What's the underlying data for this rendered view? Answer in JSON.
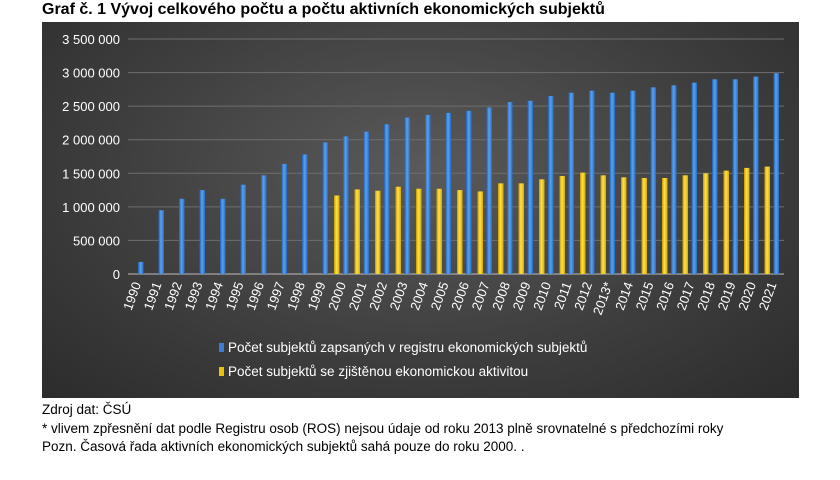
{
  "title": "Graf č.  1 Vývoj celkového počtu a počtu aktivních ekonomických subjektů",
  "footnotes": {
    "source": "Zdroj dat: ČSÚ",
    "note_star": "* vlivem zpřesnění dat podle Registru osob (ROS) nejsou údaje od roku 2013 plně srovnatelné s předchozími roky",
    "note_pozn": "Pozn. Časová řada aktivních ekonomických subjektů sahá pouze do roku 2000. ."
  },
  "colors": {
    "registered": "#3a7fd4",
    "active": "#e8c20c"
  },
  "chart_data": {
    "type": "bar",
    "title": "",
    "xlabel": "",
    "ylabel": "",
    "ylim": [
      0,
      3500000
    ],
    "yticks": [
      0,
      500000,
      1000000,
      1500000,
      2000000,
      2500000,
      3000000,
      3500000
    ],
    "ytick_labels": [
      "0",
      "500 000",
      "1 000 000",
      "1 500 000",
      "2 000 000",
      "2 500 000",
      "3 000 000",
      "3 500 000"
    ],
    "grid": true,
    "legend": "bottom",
    "categories": [
      "1990",
      "1991",
      "1992",
      "1993",
      "1994",
      "1995",
      "1996",
      "1997",
      "1998",
      "1999",
      "2000",
      "2001",
      "2002",
      "2003",
      "2004",
      "2005",
      "2006",
      "2007",
      "2008",
      "2009",
      "2010",
      "2011",
      "2012",
      "2013*",
      "2014",
      "2015",
      "2016",
      "2017",
      "2018",
      "2019",
      "2020",
      "2021"
    ],
    "series": [
      {
        "name": "Počet subjektů zapsaných v registru ekonomických subjektů",
        "values": [
          180000,
          950000,
          1120000,
          1250000,
          1120000,
          1330000,
          1470000,
          1640000,
          1780000,
          1960000,
          2050000,
          2120000,
          2230000,
          2330000,
          2370000,
          2400000,
          2430000,
          2480000,
          2560000,
          2580000,
          2650000,
          2700000,
          2730000,
          2700000,
          2730000,
          2780000,
          2810000,
          2850000,
          2900000,
          2900000,
          2940000,
          2990000
        ]
      },
      {
        "name": "Počet  subjektů se zjištěnou ekonomickou aktivitou",
        "values": [
          null,
          null,
          null,
          null,
          null,
          null,
          null,
          null,
          null,
          null,
          1170000,
          1260000,
          1240000,
          1300000,
          1270000,
          1270000,
          1250000,
          1230000,
          1350000,
          1350000,
          1410000,
          1460000,
          1510000,
          1470000,
          1440000,
          1430000,
          1430000,
          1470000,
          1500000,
          1540000,
          1580000,
          1600000
        ]
      }
    ]
  }
}
